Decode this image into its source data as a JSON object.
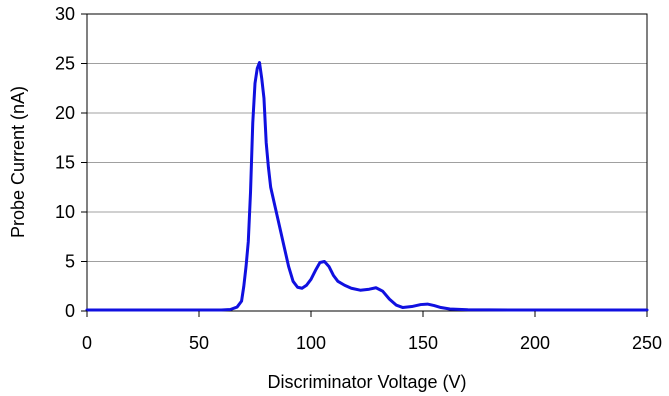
{
  "chart_data": {
    "type": "line",
    "title": "",
    "xlabel": "Discriminator Voltage (V)",
    "ylabel": "Probe Current (nA)",
    "xlim": [
      0,
      250
    ],
    "ylim": [
      0,
      30
    ],
    "x_ticks": [
      0,
      50,
      100,
      150,
      200,
      250
    ],
    "y_ticks": [
      0,
      5,
      10,
      15,
      20,
      25,
      30
    ],
    "x_tick_labels": [
      "0",
      "50",
      "100",
      "150",
      "200",
      "250"
    ],
    "y_tick_labels": [
      "0",
      "5",
      "10",
      "15",
      "20",
      "25",
      "30"
    ],
    "grid": "horizontal",
    "legend": "none",
    "series": [
      {
        "color": "#1010e0",
        "points": [
          [
            0,
            0.1
          ],
          [
            20,
            0.1
          ],
          [
            40,
            0.1
          ],
          [
            60,
            0.1
          ],
          [
            64,
            0.15
          ],
          [
            67,
            0.4
          ],
          [
            69,
            1.0
          ],
          [
            70,
            2.5
          ],
          [
            71,
            4.5
          ],
          [
            72,
            7.0
          ],
          [
            73,
            12.0
          ],
          [
            74,
            19.0
          ],
          [
            75,
            23.0
          ],
          [
            76,
            24.5
          ],
          [
            77,
            25.1
          ],
          [
            78,
            23.5
          ],
          [
            79,
            21.5
          ],
          [
            80,
            17.0
          ],
          [
            81,
            14.5
          ],
          [
            82,
            12.5
          ],
          [
            84,
            10.5
          ],
          [
            86,
            8.5
          ],
          [
            88,
            6.5
          ],
          [
            90,
            4.5
          ],
          [
            92,
            3.0
          ],
          [
            94,
            2.4
          ],
          [
            96,
            2.3
          ],
          [
            98,
            2.6
          ],
          [
            100,
            3.2
          ],
          [
            102,
            4.1
          ],
          [
            104,
            4.9
          ],
          [
            106,
            5.0
          ],
          [
            108,
            4.5
          ],
          [
            110,
            3.6
          ],
          [
            112,
            3.0
          ],
          [
            115,
            2.6
          ],
          [
            118,
            2.3
          ],
          [
            122,
            2.1
          ],
          [
            126,
            2.2
          ],
          [
            129,
            2.35
          ],
          [
            132,
            2.0
          ],
          [
            135,
            1.2
          ],
          [
            138,
            0.6
          ],
          [
            141,
            0.35
          ],
          [
            145,
            0.45
          ],
          [
            149,
            0.65
          ],
          [
            152,
            0.7
          ],
          [
            155,
            0.55
          ],
          [
            158,
            0.35
          ],
          [
            162,
            0.2
          ],
          [
            170,
            0.12
          ],
          [
            190,
            0.1
          ],
          [
            210,
            0.1
          ],
          [
            230,
            0.1
          ],
          [
            250,
            0.1
          ]
        ]
      }
    ]
  }
}
